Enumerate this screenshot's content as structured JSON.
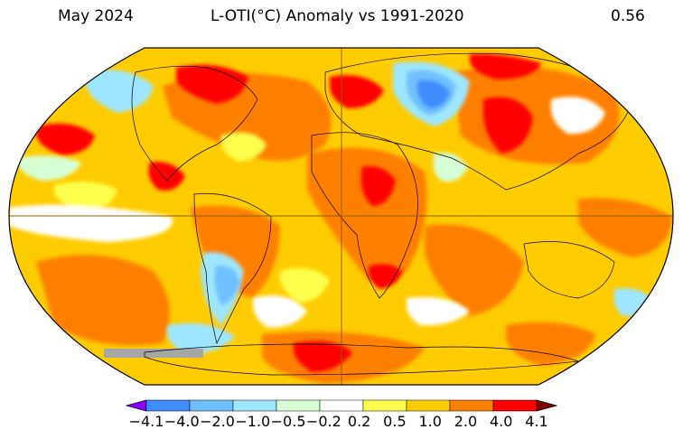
{
  "header": {
    "left": "May 2024",
    "center": "L-OTI(°C) Anomaly vs 1991-2020",
    "right": "0.56"
  },
  "colorbar": {
    "ticks": [
      "−4.1",
      "−4.0",
      "−2.0",
      "−1.0",
      "−0.5",
      "−0.2",
      "0.2",
      "0.5",
      "1.0",
      "2.0",
      "4.0",
      "4.1"
    ],
    "colors": [
      "#8b00ff",
      "#3f8cff",
      "#6fbfff",
      "#9ee6ff",
      "#d6ffd6",
      "#ffffff",
      "#ffff4d",
      "#ffcc00",
      "#ff8000",
      "#ff0000",
      "#800000"
    ]
  },
  "map": {
    "colors": {
      "background": "#ffcc00",
      "warm": "#ff8000",
      "hot": "#ff0000",
      "mild": "#ffff4d",
      "neutral": "#ffffff",
      "cool": "#d6ffd6",
      "cold": "#9ee6ff",
      "colder": "#6fbfff",
      "coldest": "#3f8cff",
      "missing": "#a6a6a6",
      "outline": "#000000",
      "gridline": "#8a6200"
    }
  }
}
